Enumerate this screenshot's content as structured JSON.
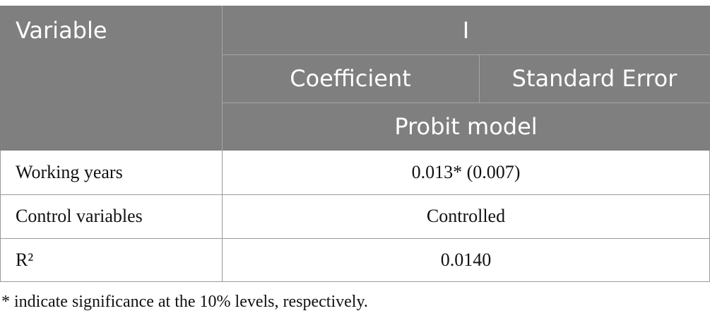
{
  "table": {
    "header": {
      "variable": "Variable",
      "group": "I",
      "subcolumns": [
        "Coefficient",
        "Standard Error"
      ],
      "model": "Probit model"
    },
    "rows": [
      [
        "Working years",
        "0.013* (0.007)"
      ],
      [
        "Control variables",
        "Controlled"
      ],
      [
        "R²",
        "0.0140"
      ]
    ],
    "footnote": "* indicate significance at the 10% levels, respectively."
  }
}
